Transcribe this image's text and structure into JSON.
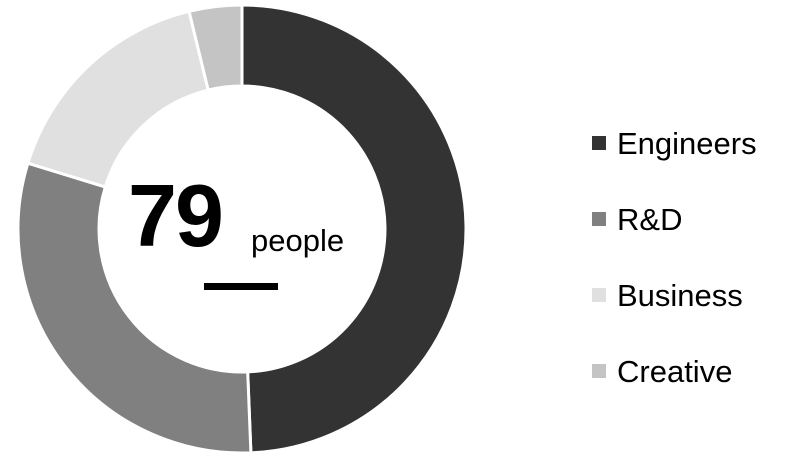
{
  "chart_data": {
    "type": "pie",
    "donut": true,
    "categories": [
      "Engineers",
      "R&D",
      "Business",
      "Creative"
    ],
    "values": [
      39,
      24,
      13,
      3
    ],
    "colors": [
      "#333333",
      "#808080",
      "#e0e0e0",
      "#c4c4c4"
    ],
    "center_value": "79",
    "center_unit": "people",
    "legend_position": "right"
  }
}
